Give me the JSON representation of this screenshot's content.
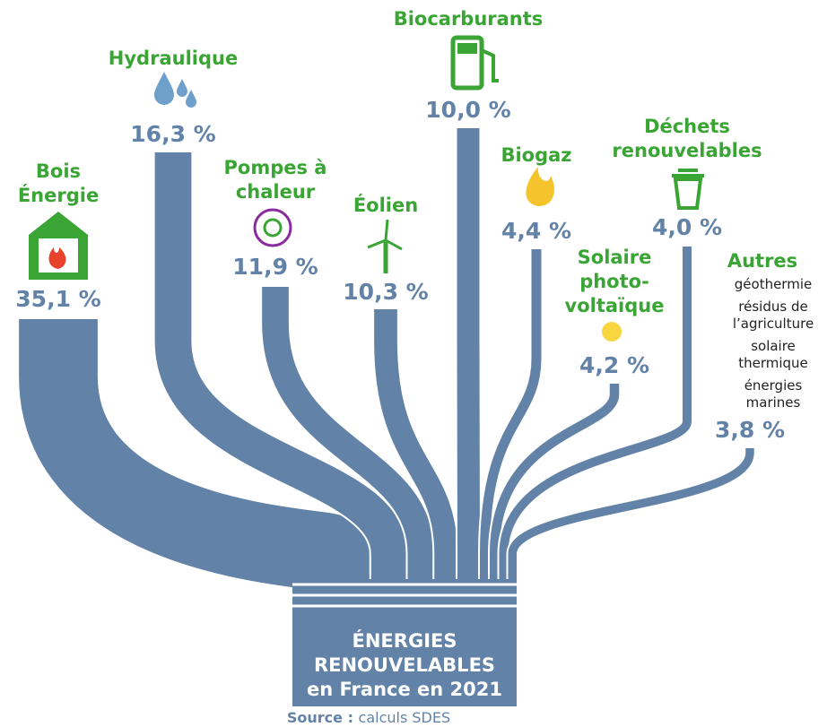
{
  "chart_data": {
    "type": "sankey",
    "title": [
      "ÉNERGIES",
      "RENOUVELABLES",
      "en France en 2021"
    ],
    "categories": [
      [
        "Bois",
        "Énergie"
      ],
      [
        "Hydraulique"
      ],
      [
        "Pompes à",
        "chaleur"
      ],
      [
        "Éolien"
      ],
      [
        "Biocarburants"
      ],
      [
        "Biogaz"
      ],
      [
        "Solaire",
        "photo-",
        "voltaïque"
      ],
      [
        "Déchets",
        "renouvelables"
      ],
      [
        "Autres"
      ]
    ],
    "values": [
      35.1,
      16.3,
      11.9,
      10.3,
      10,
      4.4,
      4.2,
      4,
      3.8
    ],
    "value_labels": [
      "35,1 %",
      "16,3 %",
      "11,9 %",
      "10,3 %",
      "10,0 %",
      "4,4 %",
      "4,2 %",
      "4,0 %",
      "3,8 %"
    ],
    "details": [
      [
        "géothermie"
      ],
      [
        "résidus de",
        "l’agriculture"
      ],
      [
        "solaire",
        "thermique"
      ],
      [
        "énergies",
        "marines"
      ]
    ],
    "source": {
      "label": "Source :",
      "text": "calculs SDES"
    },
    "color": "#6283a7",
    "label_color": "#3aa534"
  }
}
